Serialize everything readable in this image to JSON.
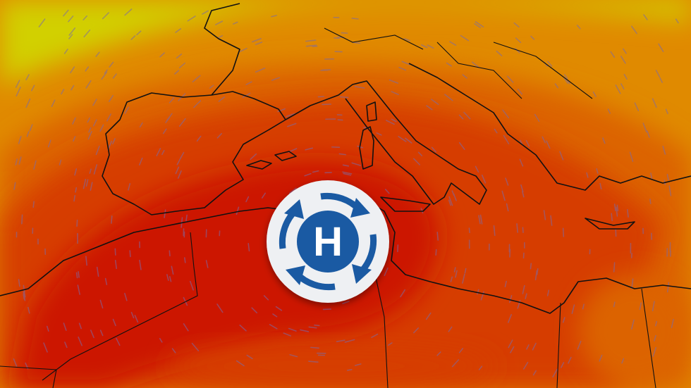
{
  "map": {
    "high_pressure_label": "H",
    "icon": "high-pressure-anticyclone-icon",
    "colors": {
      "yellow": "#d2d000",
      "orange_light": "#e08a00",
      "orange": "#dc6400",
      "red_orange": "#d63c00",
      "red": "#cc1200",
      "icon_blue": "#1a5aa3",
      "wind_streaks": "#7a6aa8"
    }
  }
}
